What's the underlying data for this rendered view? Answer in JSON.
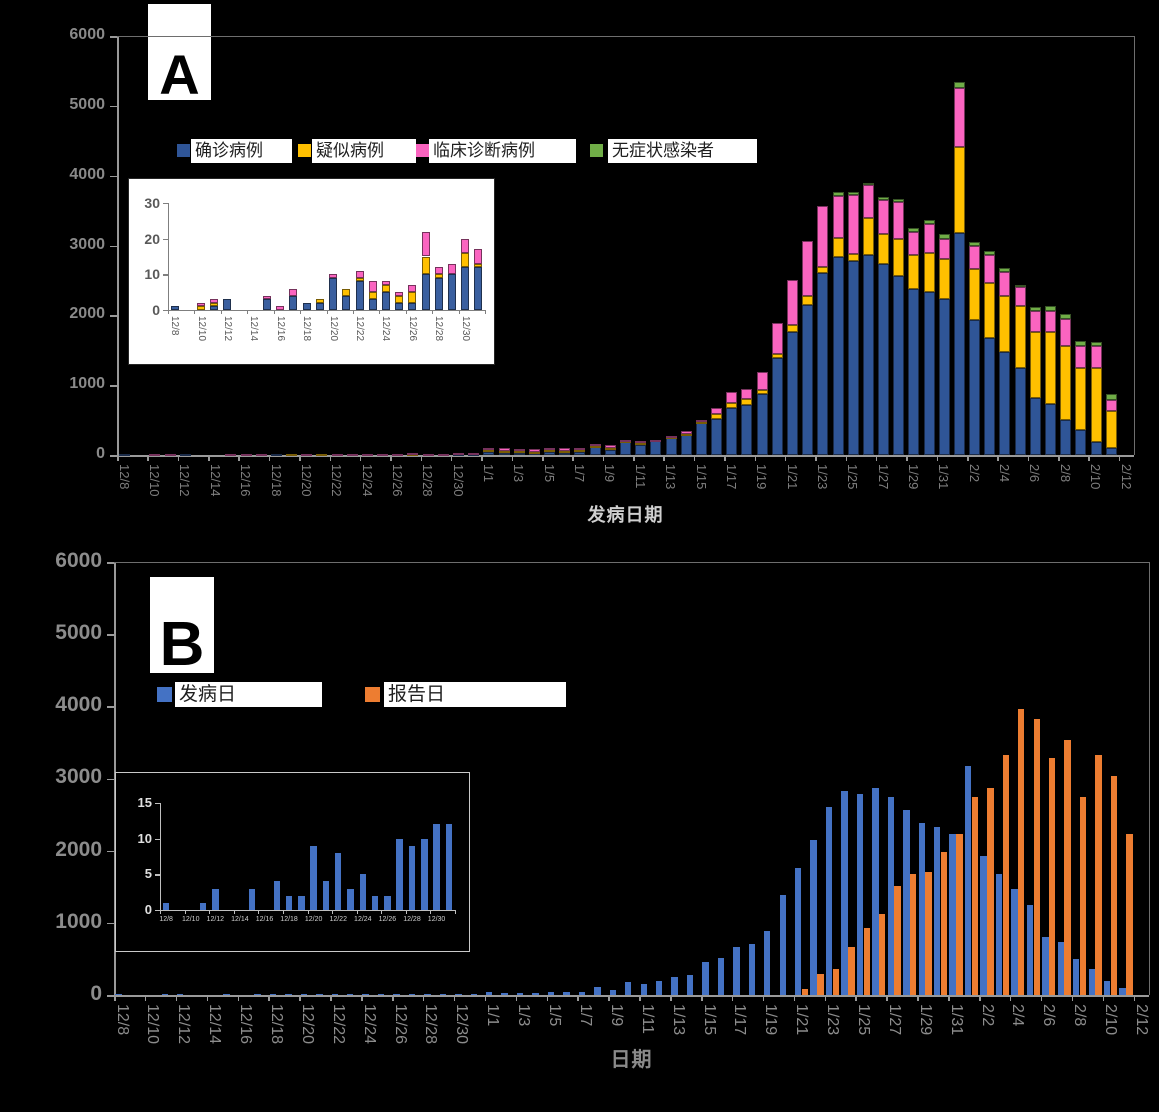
{
  "page": {
    "background": "#000000"
  },
  "chart_data": [
    {
      "panel_label": "A",
      "type": "bar",
      "subtype": "stacked",
      "x_axis_title": "发病日期",
      "ylim": [
        0,
        6000
      ],
      "y_ticks": [
        "0",
        "1000",
        "2000",
        "3000",
        "4000",
        "5000",
        "6000"
      ],
      "grid": false,
      "legend_position": "top-inside",
      "categories": [
        "12/8",
        "12/9",
        "12/10",
        "12/11",
        "12/12",
        "12/13",
        "12/14",
        "12/15",
        "12/16",
        "12/17",
        "12/18",
        "12/19",
        "12/20",
        "12/21",
        "12/22",
        "12/23",
        "12/24",
        "12/25",
        "12/26",
        "12/27",
        "12/28",
        "12/29",
        "12/30",
        "12/31",
        "1/1",
        "1/2",
        "1/3",
        "1/4",
        "1/5",
        "1/6",
        "1/7",
        "1/8",
        "1/9",
        "1/10",
        "1/11",
        "1/12",
        "1/13",
        "1/14",
        "1/15",
        "1/16",
        "1/17",
        "1/18",
        "1/19",
        "1/20",
        "1/21",
        "1/22",
        "1/23",
        "1/24",
        "1/25",
        "1/26",
        "1/27",
        "1/28",
        "1/29",
        "1/30",
        "1/31",
        "2/1",
        "2/2",
        "2/3",
        "2/4",
        "2/5",
        "2/6",
        "2/7",
        "2/8",
        "2/9",
        "2/10",
        "2/11",
        "2/12"
      ],
      "x_tick_labels": [
        "12/8",
        "12/10",
        "12/12",
        "12/14",
        "12/16",
        "12/18",
        "12/20",
        "12/22",
        "12/24",
        "12/26",
        "12/28",
        "12/30",
        "1/1",
        "1/3",
        "1/5",
        "1/7",
        "1/9",
        "1/11",
        "1/13",
        "1/15",
        "1/17",
        "1/19",
        "1/21",
        "1/23",
        "1/25",
        "1/27",
        "1/29",
        "1/31",
        "2/2",
        "2/4",
        "2/6",
        "2/8",
        "2/10",
        "2/12"
      ],
      "series": [
        {
          "name": "确诊病例",
          "color": "#2F5597",
          "values": [
            1,
            0,
            0,
            1,
            3,
            0,
            0,
            3,
            0,
            4,
            2,
            2,
            9,
            4,
            8,
            3,
            5,
            2,
            2,
            10,
            9,
            10,
            12,
            12,
            45,
            30,
            25,
            30,
            40,
            35,
            45,
            110,
            65,
            185,
            150,
            200,
            250,
            280,
            455,
            515,
            670,
            710,
            880,
            1390,
            1760,
            2150,
            2600,
            2830,
            2780,
            2870,
            2740,
            2560,
            2380,
            2330,
            2230,
            3180,
            1930,
            1680,
            1470,
            1250,
            810,
            730,
            500,
            360,
            190,
            100,
            0
          ]
        },
        {
          "name": "疑似病例",
          "color": "#FFC000",
          "values": [
            0,
            0,
            1,
            1,
            0,
            0,
            0,
            0,
            0,
            0,
            0,
            1,
            0,
            2,
            1,
            2,
            2,
            2,
            3,
            5,
            1,
            0,
            4,
            1,
            25,
            30,
            30,
            20,
            25,
            25,
            25,
            20,
            35,
            10,
            20,
            10,
            10,
            25,
            20,
            65,
            80,
            90,
            50,
            55,
            100,
            120,
            90,
            280,
            95,
            520,
            430,
            530,
            480,
            560,
            570,
            1230,
            740,
            790,
            800,
            880,
            950,
            1030,
            1065,
            880,
            1055,
            530,
            0
          ]
        },
        {
          "name": "临床诊断病例",
          "color": "#FA64C0",
          "values": [
            0,
            0,
            1,
            1,
            0,
            0,
            0,
            1,
            1,
            2,
            0,
            0,
            1,
            0,
            2,
            3,
            1,
            1,
            2,
            7,
            2,
            3,
            4,
            4,
            35,
            40,
            35,
            30,
            35,
            35,
            35,
            25,
            45,
            15,
            25,
            10,
            15,
            40,
            25,
            100,
            145,
            150,
            260,
            450,
            640,
            800,
            880,
            600,
            845,
            470,
            480,
            530,
            340,
            420,
            300,
            850,
            320,
            390,
            345,
            280,
            300,
            305,
            385,
            320,
            310,
            160,
            0
          ]
        },
        {
          "name": "无症状感染者",
          "color": "#70AD47",
          "values": [
            0,
            0,
            0,
            0,
            0,
            0,
            0,
            0,
            0,
            0,
            0,
            0,
            0,
            0,
            0,
            0,
            0,
            0,
            0,
            0,
            0,
            0,
            0,
            0,
            0,
            0,
            0,
            0,
            0,
            0,
            0,
            0,
            0,
            0,
            0,
            0,
            0,
            0,
            0,
            0,
            0,
            0,
            0,
            0,
            0,
            0,
            0,
            60,
            45,
            40,
            50,
            40,
            45,
            55,
            60,
            75,
            60,
            60,
            60,
            30,
            65,
            65,
            70,
            70,
            70,
            80,
            0
          ]
        }
      ],
      "inset": {
        "ylim": [
          0,
          30
        ],
        "y_ticks": [
          "0",
          "10",
          "20",
          "30"
        ],
        "background": "#FFFFFF",
        "categories": [
          "12/8",
          "12/9",
          "12/10",
          "12/11",
          "12/12",
          "12/13",
          "12/14",
          "12/15",
          "12/16",
          "12/17",
          "12/18",
          "12/19",
          "12/20",
          "12/21",
          "12/22",
          "12/23",
          "12/24",
          "12/25",
          "12/26",
          "12/27",
          "12/28",
          "12/29",
          "12/30",
          "12/31"
        ],
        "x_tick_labels": [
          "12/8",
          "12/10",
          "12/12",
          "12/14",
          "12/16",
          "12/18",
          "12/20",
          "12/22",
          "12/24",
          "12/26",
          "12/28",
          "12/30"
        ],
        "series": [
          {
            "name": "确诊病例",
            "color": "#3A5F9F",
            "values": [
              1,
              0,
              0,
              1,
              3,
              0,
              0,
              3,
              0,
              4,
              2,
              2,
              9,
              4,
              8,
              3,
              5,
              2,
              2,
              10,
              9,
              10,
              12,
              12
            ]
          },
          {
            "name": "疑似病例",
            "color": "#FFC000",
            "values": [
              0,
              0,
              1,
              1,
              0,
              0,
              0,
              0,
              0,
              0,
              0,
              1,
              0,
              2,
              1,
              2,
              2,
              2,
              3,
              5,
              1,
              0,
              4,
              1
            ]
          },
          {
            "name": "临床诊断病例",
            "color": "#FA64C0",
            "values": [
              0,
              0,
              1,
              1,
              0,
              0,
              0,
              1,
              1,
              2,
              0,
              0,
              1,
              0,
              2,
              3,
              1,
              1,
              2,
              7,
              2,
              3,
              4,
              4
            ]
          }
        ]
      }
    },
    {
      "panel_label": "B",
      "type": "bar",
      "subtype": "clustered",
      "x_axis_title": "日期",
      "ylim": [
        0,
        6000
      ],
      "y_ticks": [
        "0",
        "1000",
        "2000",
        "3000",
        "4000",
        "5000",
        "6000"
      ],
      "grid": false,
      "legend_position": "top-inside",
      "categories": [
        "12/8",
        "12/9",
        "12/10",
        "12/11",
        "12/12",
        "12/13",
        "12/14",
        "12/15",
        "12/16",
        "12/17",
        "12/18",
        "12/19",
        "12/20",
        "12/21",
        "12/22",
        "12/23",
        "12/24",
        "12/25",
        "12/26",
        "12/27",
        "12/28",
        "12/29",
        "12/30",
        "12/31",
        "1/1",
        "1/2",
        "1/3",
        "1/4",
        "1/5",
        "1/6",
        "1/7",
        "1/8",
        "1/9",
        "1/10",
        "1/11",
        "1/12",
        "1/13",
        "1/14",
        "1/15",
        "1/16",
        "1/17",
        "1/18",
        "1/19",
        "1/20",
        "1/21",
        "1/22",
        "1/23",
        "1/24",
        "1/25",
        "1/26",
        "1/27",
        "1/28",
        "1/29",
        "1/30",
        "1/31",
        "2/1",
        "2/2",
        "2/3",
        "2/4",
        "2/5",
        "2/6",
        "2/7",
        "2/8",
        "2/9",
        "2/10",
        "2/11",
        "2/12"
      ],
      "x_tick_labels": [
        "12/8",
        "12/10",
        "12/12",
        "12/14",
        "12/16",
        "12/18",
        "12/20",
        "12/22",
        "12/24",
        "12/26",
        "12/28",
        "12/30",
        "1/1",
        "1/3",
        "1/5",
        "1/7",
        "1/9",
        "1/11",
        "1/13",
        "1/15",
        "1/17",
        "1/19",
        "1/21",
        "1/23",
        "1/25",
        "1/27",
        "1/29",
        "1/31",
        "2/2",
        "2/4",
        "2/6",
        "2/8",
        "2/10",
        "2/12"
      ],
      "series": [
        {
          "name": "发病日",
          "color": "#4472C4",
          "values": [
            1,
            0,
            0,
            1,
            3,
            0,
            0,
            3,
            0,
            4,
            2,
            2,
            9,
            4,
            8,
            3,
            5,
            2,
            2,
            10,
            9,
            10,
            12,
            12,
            45,
            30,
            25,
            30,
            40,
            35,
            45,
            110,
            65,
            185,
            150,
            200,
            250,
            280,
            455,
            515,
            670,
            710,
            880,
            1390,
            1760,
            2150,
            2600,
            2830,
            2780,
            2870,
            2740,
            2560,
            2380,
            2330,
            2230,
            3180,
            1930,
            1680,
            1470,
            1250,
            810,
            730,
            500,
            360,
            190,
            100,
            0
          ]
        },
        {
          "name": "报告日",
          "color": "#ED7D31",
          "values": [
            0,
            0,
            0,
            0,
            0,
            0,
            0,
            0,
            0,
            0,
            0,
            0,
            0,
            0,
            0,
            0,
            0,
            0,
            0,
            0,
            0,
            0,
            0,
            0,
            0,
            0,
            0,
            0,
            0,
            0,
            0,
            0,
            0,
            0,
            0,
            0,
            0,
            0,
            0,
            0,
            0,
            0,
            0,
            0,
            80,
            295,
            355,
            660,
            925,
            1120,
            1505,
            1675,
            1700,
            1980,
            2230,
            2750,
            2870,
            3320,
            3960,
            3830,
            3290,
            3540,
            2750,
            3320,
            3030,
            2230,
            0
          ]
        }
      ],
      "inset": {
        "ylim": [
          0,
          15
        ],
        "y_ticks": [
          "0",
          "5",
          "10",
          "15"
        ],
        "background": "transparent",
        "categories": [
          "12/8",
          "12/9",
          "12/10",
          "12/11",
          "12/12",
          "12/13",
          "12/14",
          "12/15",
          "12/16",
          "12/17",
          "12/18",
          "12/19",
          "12/20",
          "12/21",
          "12/22",
          "12/23",
          "12/24",
          "12/25",
          "12/26",
          "12/27",
          "12/28",
          "12/29",
          "12/30",
          "12/31"
        ],
        "x_tick_labels": [
          "12/8",
          "12/10",
          "12/12",
          "12/14",
          "12/16",
          "12/18",
          "12/20",
          "12/22",
          "12/24",
          "12/26",
          "12/28",
          "12/30"
        ],
        "series": [
          {
            "name": "发病日",
            "color": "#4472C4",
            "values": [
              1,
              0,
              0,
              1,
              3,
              0,
              0,
              3,
              0,
              4,
              2,
              2,
              9,
              4,
              8,
              3,
              5,
              2,
              2,
              10,
              9,
              10,
              12,
              12
            ]
          }
        ]
      }
    }
  ]
}
